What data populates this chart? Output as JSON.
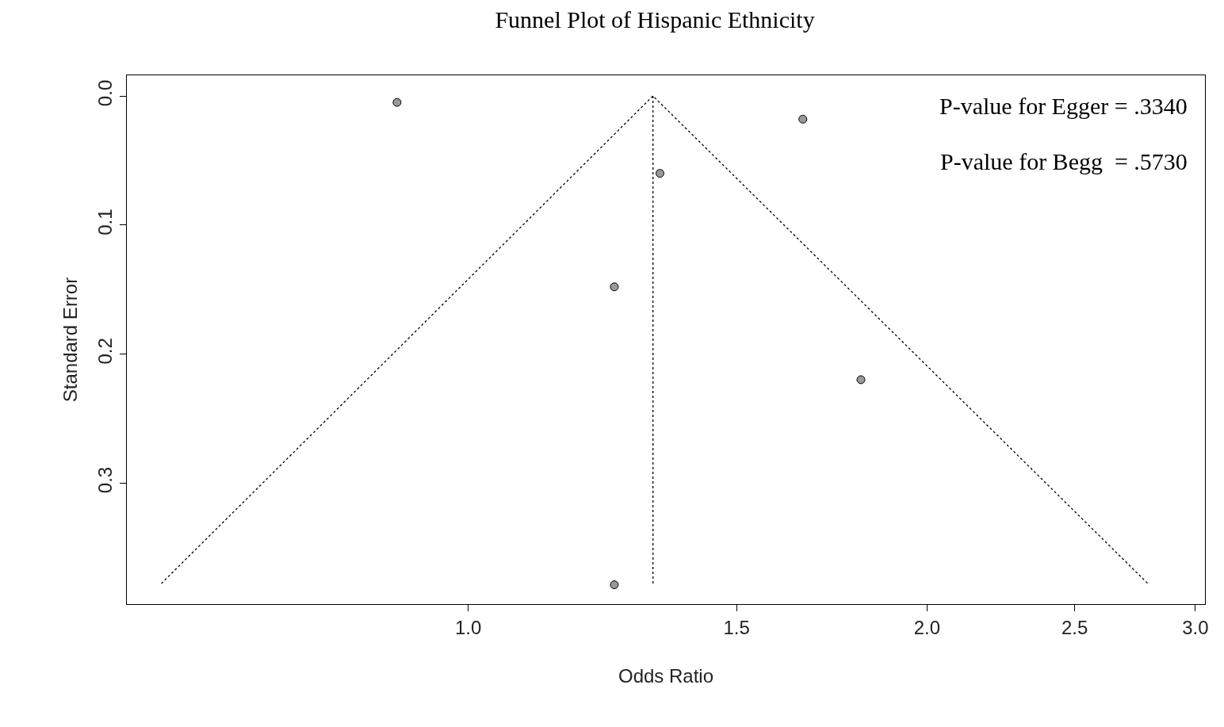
{
  "chart_data": {
    "type": "scatter",
    "title": "Funnel Plot of Hispanic Ethnicity",
    "xlabel": "Odds Ratio",
    "ylabel": "Standard Error",
    "log": "x",
    "xlim": [
      0.597,
      3.044
    ],
    "ylim": [
      0.394,
      -0.016
    ],
    "xticks": [
      {
        "value": 1.0,
        "label": "1.0"
      },
      {
        "value": 1.5,
        "label": "1.5"
      },
      {
        "value": 2.0,
        "label": "2.0"
      },
      {
        "value": 2.5,
        "label": "2.5"
      },
      {
        "value": 3.0,
        "label": "3.0"
      }
    ],
    "yticks": [
      {
        "value": 0.0,
        "label": "0.0"
      },
      {
        "value": 0.1,
        "label": "0.1"
      },
      {
        "value": 0.2,
        "label": "0.2"
      },
      {
        "value": 0.3,
        "label": "0.3"
      }
    ],
    "marker": "circle",
    "series": [
      {
        "color": "#999999",
        "x": [
          0.898,
          1.658,
          1.336,
          1.247,
          1.81,
          1.247
        ],
        "values": [
          0.005,
          0.018,
          0.06,
          0.148,
          0.22,
          0.379
        ]
      },
      {
        "type": "line",
        "color": "#000000",
        "line_style": "dotted",
        "marker": "none",
        "x": [
          0.629,
          1.322,
          2.792
        ],
        "values": [
          0.378,
          0.0,
          0.378
        ]
      },
      {
        "type": "line",
        "color": "#000000",
        "line_style": "dotted",
        "marker": "none",
        "x": [
          1.322,
          1.322
        ],
        "values": [
          0.0,
          0.378
        ]
      }
    ],
    "annotations": [
      "P-value for Egger = .3340",
      "P-value for Begg  = .5730"
    ]
  }
}
